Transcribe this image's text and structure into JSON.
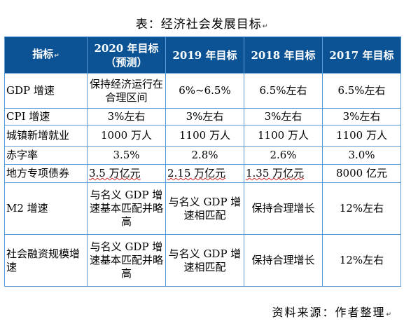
{
  "title": "表：经济社会发展目标",
  "headers": [
    "指标",
    "2020 年目标（预测）",
    "2019 年目标",
    "2018 年目标",
    "2017 年目标"
  ],
  "rows": [
    {
      "indicator": "GDP 增速",
      "c2020": "保持经济运行在合理区间",
      "c2019": "6%~6.5%",
      "c2018": "6.5%左右",
      "c2017": "6.5%左右"
    },
    {
      "indicator": "CPI 增速",
      "c2020": "3%左右",
      "c2019": "3%左右",
      "c2018": "3%左右",
      "c2017": "3%左右"
    },
    {
      "indicator": "城镇新增就业",
      "c2020": "1000 万人",
      "c2019": "1100 万人",
      "c2018": "1100 万人",
      "c2017": "1100 万人"
    },
    {
      "indicator": "赤字率",
      "c2020": "3.5%",
      "c2019": "2.8%",
      "c2018": "2.6%",
      "c2017": "3.0%"
    },
    {
      "indicator": "地方专项债券",
      "c2020": "3.5 万亿元",
      "c2019": "2.15 万亿元",
      "c2018": "1.35 万亿元",
      "c2017": "8000 亿元"
    },
    {
      "indicator": "M2 增速",
      "c2020": "与名义 GDP 增速基本匹配并略高",
      "c2019": "与名义 GDP 增速相匹配",
      "c2018": "保持合理增长",
      "c2017": "12%左右"
    },
    {
      "indicator": "社会融资规模增速",
      "c2020": "与名义 GDP 增速基本匹配并略高",
      "c2019": "与名义 GDP 增速相匹配",
      "c2018": "保持合理增长",
      "c2017": "12%左右"
    }
  ],
  "source": "资料来源：作者整理"
}
